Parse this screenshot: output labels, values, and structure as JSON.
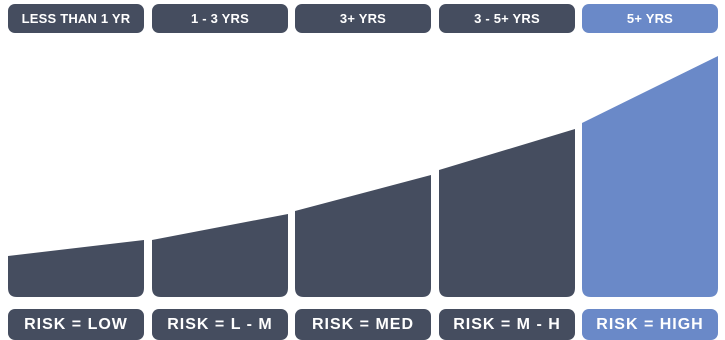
{
  "colors": {
    "dark": "#454d5f",
    "accent": "#6a89c8"
  },
  "columns": [
    {
      "period": "LESS THAN 1 YR",
      "risk": "RISK = LOW",
      "highlight": false
    },
    {
      "period": "1 - 3 YRS",
      "risk": "RISK = L - M",
      "highlight": false
    },
    {
      "period": "3+ YRS",
      "risk": "RISK = MED",
      "highlight": false
    },
    {
      "period": "3 - 5+ YRS",
      "risk": "RISK = M - H",
      "highlight": false
    },
    {
      "period": "5+ YRS",
      "risk": "RISK = HIGH",
      "highlight": true
    }
  ]
}
